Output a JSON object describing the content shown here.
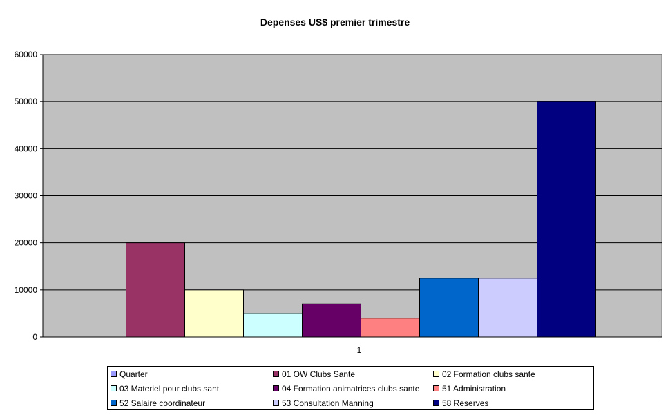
{
  "chart_data": {
    "type": "bar",
    "title": "Depenses US$ premier trimestre",
    "categories": [
      "1"
    ],
    "ylim": [
      0,
      60000
    ],
    "yticks": [
      0,
      10000,
      20000,
      30000,
      40000,
      50000,
      60000
    ],
    "ytick_labels": [
      "0",
      "10000",
      "20000",
      "30000",
      "40000",
      "50000",
      "60000"
    ],
    "grid": true,
    "legend_position": "bottom",
    "plot_background": "#c0c0c0",
    "series": [
      {
        "name": "Quarter",
        "values": [
          0
        ],
        "color": "#9999ff"
      },
      {
        "name": "01 OW Clubs Sante",
        "values": [
          20000
        ],
        "color": "#993366"
      },
      {
        "name": "02 Formation clubs sante",
        "values": [
          10000
        ],
        "color": "#ffffcc"
      },
      {
        "name": "03 Materiel pour clubs sant",
        "values": [
          5000
        ],
        "color": "#ccffff"
      },
      {
        "name": "04 Formation animatrices clubs sante",
        "values": [
          7000
        ],
        "color": "#660066"
      },
      {
        "name": "51 Administration",
        "values": [
          4000
        ],
        "color": "#ff8080"
      },
      {
        "name": "52 Salaire coordinateur",
        "values": [
          12500
        ],
        "color": "#0066cc"
      },
      {
        "name": "53 Consultation Manning",
        "values": [
          12500
        ],
        "color": "#ccccff"
      },
      {
        "name": "58 Reserves",
        "values": [
          50000
        ],
        "color": "#000080"
      }
    ]
  }
}
